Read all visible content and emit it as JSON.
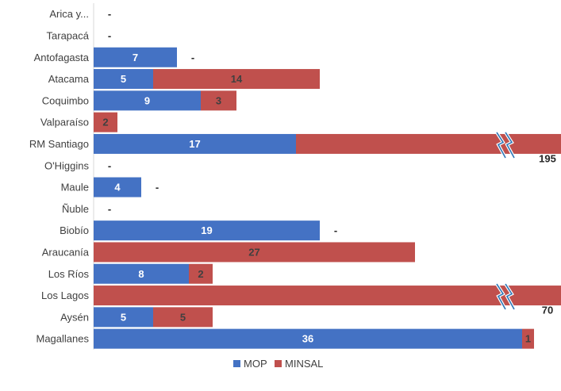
{
  "chart_data": {
    "type": "bar",
    "orientation": "horizontal",
    "stacked": true,
    "categories": [
      "Arica y...",
      "Tarapacá",
      "Antofagasta",
      "Atacama",
      "Coquimbo",
      "Valparaíso",
      "RM Santiago",
      "O'Higgins",
      "Maule",
      "Ñuble",
      "Biobío",
      "Araucanía",
      "Los Ríos",
      "Los Lagos",
      "Aysén",
      "Magallanes"
    ],
    "series": [
      {
        "name": "MOP",
        "color": "#4472C4",
        "values": [
          null,
          null,
          7,
          5,
          9,
          null,
          17,
          null,
          4,
          null,
          19,
          null,
          8,
          null,
          5,
          36
        ]
      },
      {
        "name": "MINSAL",
        "color": "#C0504D",
        "values": [
          null,
          null,
          null,
          14,
          3,
          2,
          195,
          null,
          null,
          null,
          null,
          27,
          2,
          70,
          5,
          1
        ]
      }
    ],
    "value_labels": {
      "MOP": [
        "-",
        "-",
        "7",
        "5",
        "9",
        "",
        "17",
        "-",
        "4",
        "-",
        "19",
        "",
        "8",
        "",
        "5",
        "36"
      ],
      "MINSAL": [
        "",
        "",
        "-",
        "14",
        "3",
        "2",
        "195",
        "",
        "-",
        "",
        "-",
        "27",
        "2",
        "70",
        "5",
        "1"
      ]
    },
    "axis_break": [
      "RM Santiago",
      "Los Lagos"
    ],
    "xlim": [
      0,
      40
    ],
    "grid": false,
    "legend": {
      "position": "bottom",
      "entries": [
        "MOP",
        "MINSAL"
      ]
    },
    "break_color": "#2E75B6"
  }
}
